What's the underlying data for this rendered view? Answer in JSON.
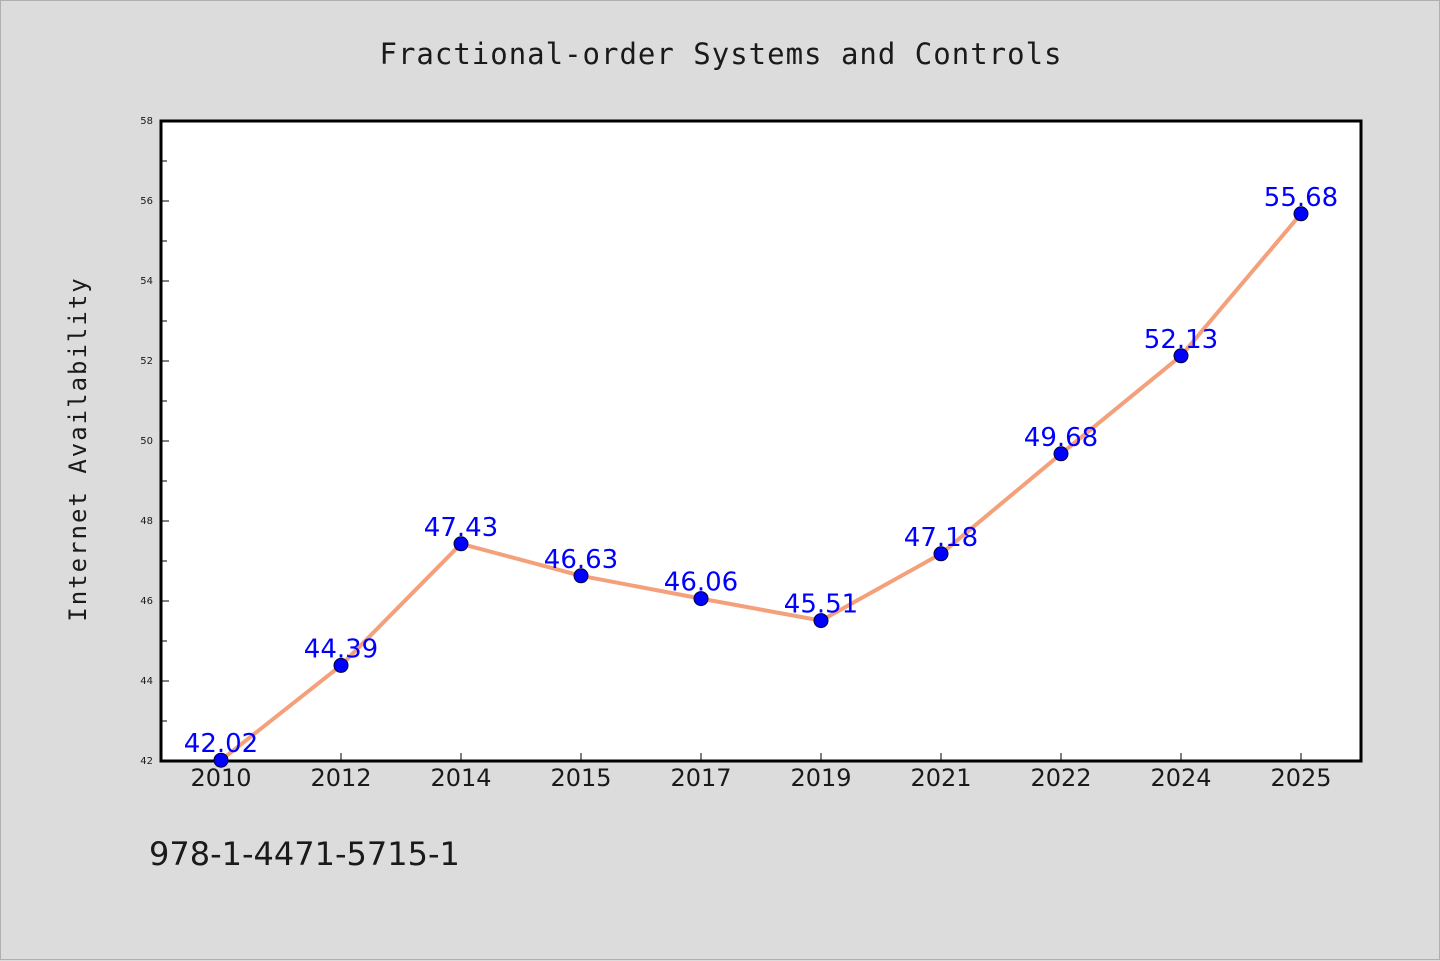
{
  "chart_data": {
    "type": "line",
    "title": "Fractional-order Systems and Controls",
    "xlabel": "",
    "ylabel": "Internet Availability",
    "categories": [
      "2010",
      "2012",
      "2014",
      "2015",
      "2017",
      "2019",
      "2021",
      "2022",
      "2024",
      "2025"
    ],
    "series": [
      {
        "values": [
          42.02,
          44.39,
          47.43,
          46.63,
          46.06,
          45.51,
          47.18,
          49.68,
          52.13,
          55.68
        ],
        "data_labels": [
          "42.02",
          "44.39",
          "47.43",
          "46.63",
          "46.06",
          "45.51",
          "47.18",
          "49.68",
          "52.13",
          "55.68"
        ]
      }
    ],
    "ylim": [
      42,
      58
    ],
    "yticks": [
      "42",
      "44",
      "46",
      "48",
      "50",
      "52",
      "54",
      "56",
      "58"
    ],
    "grid": false,
    "colors": {
      "line": "#f4a07a",
      "marker": "#0000ff",
      "data_label": "#0000ff",
      "background": "#dcdcdc",
      "plot_background": "#ffffff"
    }
  },
  "footer_text": "978-1-4471-5715-1"
}
